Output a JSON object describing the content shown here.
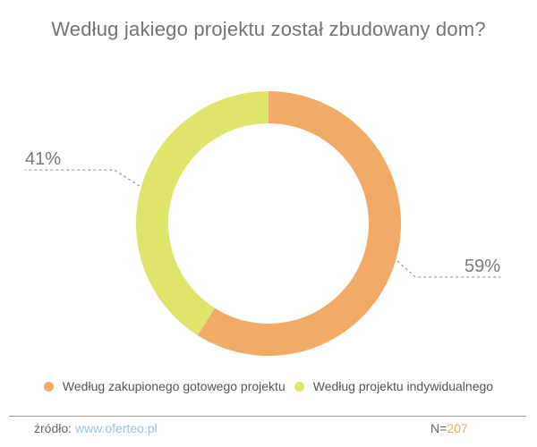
{
  "colors": {
    "orange": "#f2ab66",
    "yellow": "#dfe56a",
    "text": "#737373"
  },
  "chart_data": {
    "type": "pie",
    "style": "donut",
    "title": "Według jakiego projektu został zbudowany dom?",
    "slices": [
      {
        "label": "Według zakupionego gotowego projektu",
        "value": 59,
        "value_label": "59%",
        "color": "#f2ab66"
      },
      {
        "label": "Według projektu indywidualnego",
        "value": 41,
        "value_label": "41%",
        "color": "#dfe56a"
      }
    ],
    "legend_position": "bottom"
  },
  "footer": {
    "source_label": "źródło:",
    "source_url": "www.oferteo.pl",
    "n_label": "N=",
    "n_value": "207"
  }
}
